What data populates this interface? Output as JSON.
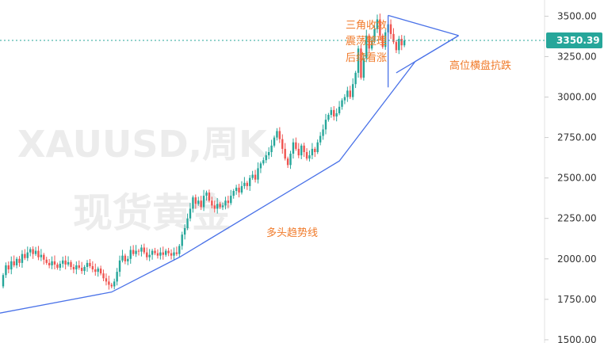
{
  "chart_data": {
    "type": "candlestick",
    "symbol_watermark": "XAUUSD,周K",
    "watermark_sub": "现货黄金",
    "current_price": 3350.39,
    "current_price_label": "3350.39",
    "ylim": [
      1480,
      3600
    ],
    "y_ticks": [
      {
        "value": 3500,
        "label": "3500.00"
      },
      {
        "value": 3250,
        "label": "3250.00"
      },
      {
        "value": 3000,
        "label": "3000.00"
      },
      {
        "value": 2750,
        "label": "2750.00"
      },
      {
        "value": 2500,
        "label": "2500.00"
      },
      {
        "value": 2250,
        "label": "2250.00"
      },
      {
        "value": 2000,
        "label": "2000.00"
      },
      {
        "value": 1750,
        "label": "1750.00"
      },
      {
        "value": 1500,
        "label": "1500.00"
      }
    ],
    "colors": {
      "up": "#26a69a",
      "down": "#ef5350",
      "trend": "#4a72e8",
      "annotation": "#f07a2a",
      "price_line": "#26a69a"
    },
    "annotations": {
      "triangle": [
        "三角收敛",
        "震荡整理",
        "后续看涨"
      ],
      "sideways": "高位横盘抗跌",
      "trend": "多头趋势线"
    },
    "trendline": [
      {
        "i": 0,
        "price": 1665
      },
      {
        "i": 40,
        "price": 1795
      },
      {
        "i": 65,
        "price": 2010
      },
      {
        "i": 124,
        "price": 2605
      },
      {
        "i": 152,
        "price": 3220
      },
      {
        "i": 168,
        "price": 3380
      }
    ],
    "triangle": {
      "upper_start": {
        "i": 142,
        "price": 3505
      },
      "apex": {
        "i": 168,
        "price": 3380
      },
      "lower_start": {
        "i": 145,
        "price": 3150
      }
    },
    "candles": [
      [
        1830,
        1900
      ],
      [
        1900,
        1960
      ],
      [
        1960,
        1935
      ],
      [
        1935,
        1985
      ],
      [
        1985,
        1960
      ],
      [
        1960,
        2000
      ],
      [
        2000,
        1975
      ],
      [
        1975,
        2030
      ],
      [
        2030,
        2005
      ],
      [
        2005,
        2040
      ],
      [
        2040,
        2060
      ],
      [
        2060,
        2030
      ],
      [
        2030,
        2050
      ],
      [
        2050,
        2010
      ],
      [
        2010,
        2025
      ],
      [
        2025,
        1995
      ],
      [
        1995,
        1975
      ],
      [
        1975,
        1960
      ],
      [
        1960,
        1985
      ],
      [
        1985,
        1965
      ],
      [
        1965,
        1945
      ],
      [
        1945,
        1970
      ],
      [
        1970,
        1990
      ],
      [
        1990,
        1965
      ],
      [
        1965,
        1980
      ],
      [
        1980,
        1950
      ],
      [
        1950,
        1935
      ],
      [
        1935,
        1960
      ],
      [
        1960,
        1945
      ],
      [
        1945,
        1925
      ],
      [
        1925,
        1950
      ],
      [
        1950,
        1975
      ],
      [
        1975,
        1955
      ],
      [
        1955,
        1935
      ],
      [
        1935,
        1920
      ],
      [
        1920,
        1940
      ],
      [
        1940,
        1910
      ],
      [
        1910,
        1880
      ],
      [
        1880,
        1860
      ],
      [
        1860,
        1840
      ],
      [
        1840,
        1830
      ],
      [
        1830,
        1860
      ],
      [
        1860,
        1920
      ],
      [
        1920,
        1990
      ],
      [
        1990,
        2020
      ],
      [
        2020,
        1985
      ],
      [
        1985,
        2000
      ],
      [
        2000,
        2055
      ],
      [
        2055,
        2030
      ],
      [
        2030,
        2050
      ],
      [
        2050,
        2045
      ],
      [
        2045,
        2070
      ],
      [
        2070,
        2040
      ],
      [
        2040,
        2010
      ],
      [
        2010,
        2025
      ],
      [
        2025,
        2050
      ],
      [
        2050,
        2035
      ],
      [
        2035,
        2020
      ],
      [
        2020,
        2040
      ],
      [
        2040,
        2025
      ],
      [
        2025,
        2050
      ],
      [
        2050,
        2035
      ],
      [
        2035,
        2020
      ],
      [
        2020,
        2040
      ],
      [
        2040,
        2030
      ],
      [
        2030,
        2080
      ],
      [
        2080,
        2150
      ],
      [
        2150,
        2190
      ],
      [
        2190,
        2250
      ],
      [
        2250,
        2310
      ],
      [
        2310,
        2380
      ],
      [
        2380,
        2340
      ],
      [
        2340,
        2360
      ],
      [
        2360,
        2320
      ],
      [
        2320,
        2390
      ],
      [
        2390,
        2410
      ],
      [
        2410,
        2360
      ],
      [
        2360,
        2330
      ],
      [
        2330,
        2310
      ],
      [
        2310,
        2340
      ],
      [
        2340,
        2320
      ],
      [
        2320,
        2330
      ],
      [
        2330,
        2360
      ],
      [
        2360,
        2345
      ],
      [
        2345,
        2390
      ],
      [
        2390,
        2420
      ],
      [
        2420,
        2440
      ],
      [
        2440,
        2410
      ],
      [
        2410,
        2450
      ],
      [
        2450,
        2470
      ],
      [
        2470,
        2450
      ],
      [
        2450,
        2500
      ],
      [
        2500,
        2520
      ],
      [
        2520,
        2490
      ],
      [
        2490,
        2560
      ],
      [
        2560,
        2590
      ],
      [
        2590,
        2610
      ],
      [
        2610,
        2640
      ],
      [
        2640,
        2660
      ],
      [
        2660,
        2700
      ],
      [
        2700,
        2750
      ],
      [
        2750,
        2790
      ],
      [
        2790,
        2740
      ],
      [
        2740,
        2680
      ],
      [
        2680,
        2620
      ],
      [
        2620,
        2580
      ],
      [
        2580,
        2650
      ],
      [
        2650,
        2720
      ],
      [
        2720,
        2680
      ],
      [
        2680,
        2640
      ],
      [
        2640,
        2700
      ],
      [
        2700,
        2660
      ],
      [
        2660,
        2620
      ],
      [
        2620,
        2640
      ],
      [
        2640,
        2680
      ],
      [
        2680,
        2660
      ],
      [
        2660,
        2720
      ],
      [
        2720,
        2760
      ],
      [
        2760,
        2800
      ],
      [
        2800,
        2860
      ],
      [
        2860,
        2890
      ],
      [
        2890,
        2920
      ],
      [
        2920,
        2880
      ],
      [
        2880,
        2900
      ],
      [
        2900,
        2940
      ],
      [
        2940,
        2980
      ],
      [
        2980,
        3000
      ],
      [
        3000,
        3040
      ],
      [
        3040,
        3000
      ],
      [
        3000,
        3080
      ],
      [
        3080,
        3150
      ],
      [
        3150,
        3300
      ],
      [
        3300,
        3120
      ],
      [
        3120,
        3240
      ],
      [
        3240,
        3380
      ],
      [
        3380,
        3300
      ],
      [
        3300,
        3350
      ],
      [
        3350,
        3420
      ],
      [
        3420,
        3480
      ],
      [
        3480,
        3380
      ],
      [
        3380,
        3310
      ],
      [
        3310,
        3400
      ],
      [
        3400,
        3450
      ],
      [
        3450,
        3390
      ],
      [
        3390,
        3340
      ],
      [
        3340,
        3290
      ],
      [
        3290,
        3360
      ],
      [
        3360,
        3320
      ],
      [
        3320,
        3350
      ]
    ]
  }
}
